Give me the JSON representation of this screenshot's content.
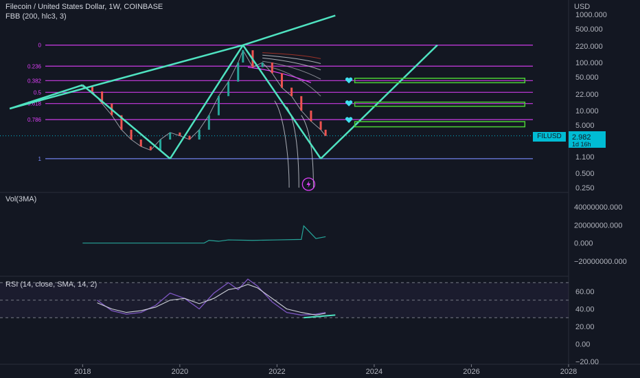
{
  "header": {
    "symbol_title": "Filecoin / United States Dollar, 1W, COINBASE",
    "indicator_fbb": "FBB (200, hlc3, 3)",
    "currency": "USD"
  },
  "price_pane": {
    "price_ticks": [
      "1000.000",
      "500.000",
      "220.000",
      "100.000",
      "50.000",
      "22.000",
      "10.000",
      "5.000",
      "2.982",
      "1.100",
      "0.500",
      "0.250"
    ],
    "fib_levels": [
      {
        "label": "0",
        "color": "#e040fb"
      },
      {
        "label": "0.236",
        "color": "#e040fb"
      },
      {
        "label": "0.382",
        "color": "#e040fb"
      },
      {
        "label": "0.5",
        "color": "#e040fb"
      },
      {
        "label": "0.618",
        "color": "#e040fb"
      },
      {
        "label": "0.786",
        "color": "#e040fb"
      },
      {
        "label": "1",
        "color": "#7b8cff"
      }
    ],
    "last_price_tag": {
      "symbol": "FILUSD",
      "price": "2.982",
      "countdown": "1d 16h",
      "color": "#00bcd4"
    },
    "trend_color": "#4fe3c1",
    "target_box_color": "#4cd137",
    "icons": [
      "heart-icon",
      "heart-icon",
      "heart-icon",
      "lightning-icon"
    ]
  },
  "volume_pane": {
    "title": "Vol(3MA)",
    "ticks": [
      "40000000.000",
      "20000000.000",
      "0.000",
      "−20000000.000"
    ],
    "line_color": "#26a69a"
  },
  "rsi_pane": {
    "title": "RSI (14, close, SMA, 14, 2)",
    "ticks": [
      "60.00",
      "40.00",
      "20.00",
      "0.00",
      "−20.00"
    ],
    "rsi_color": "#7e57c2",
    "sma_color": "#d1d4dc",
    "band_color": "#7e57c2"
  },
  "time_axis": {
    "labels": [
      "2018",
      "2020",
      "2022",
      "2024",
      "2026",
      "2028"
    ]
  },
  "chart_data": {
    "type": "line",
    "title": "Filecoin / United States Dollar, 1W, COINBASE",
    "y_scale": "log",
    "xlim": [
      2016.3,
      2028
    ],
    "ylim": [
      0.25,
      1000
    ],
    "grid": false,
    "price_path": [
      {
        "x": 2017.95,
        "y": 33
      },
      {
        "x": 2018.2,
        "y": 25
      },
      {
        "x": 2018.4,
        "y": 14
      },
      {
        "x": 2018.6,
        "y": 8
      },
      {
        "x": 2018.8,
        "y": 4
      },
      {
        "x": 2019.0,
        "y": 2.5
      },
      {
        "x": 2019.2,
        "y": 1.8
      },
      {
        "x": 2019.4,
        "y": 1.5
      },
      {
        "x": 2019.6,
        "y": 2.5
      },
      {
        "x": 2019.8,
        "y": 3.5
      },
      {
        "x": 2020.0,
        "y": 3
      },
      {
        "x": 2020.2,
        "y": 2.5
      },
      {
        "x": 2020.4,
        "y": 4
      },
      {
        "x": 2020.6,
        "y": 8
      },
      {
        "x": 2020.8,
        "y": 20
      },
      {
        "x": 2021.0,
        "y": 40
      },
      {
        "x": 2021.2,
        "y": 100
      },
      {
        "x": 2021.3,
        "y": 180
      },
      {
        "x": 2021.5,
        "y": 80
      },
      {
        "x": 2021.7,
        "y": 100
      },
      {
        "x": 2021.9,
        "y": 60
      },
      {
        "x": 2022.1,
        "y": 30
      },
      {
        "x": 2022.3,
        "y": 20
      },
      {
        "x": 2022.5,
        "y": 10
      },
      {
        "x": 2022.7,
        "y": 6
      },
      {
        "x": 2022.9,
        "y": 4
      },
      {
        "x": 2023.0,
        "y": 2.98
      }
    ],
    "trend_lines": [
      {
        "points": [
          [
            2016.5,
            11
          ],
          [
            2018.0,
            34
          ]
        ]
      },
      {
        "points": [
          [
            2018.0,
            34
          ],
          [
            2019.8,
            1.0
          ]
        ]
      },
      {
        "points": [
          [
            2019.8,
            1.0
          ],
          [
            2021.3,
            230
          ]
        ]
      },
      {
        "points": [
          [
            2021.3,
            230
          ],
          [
            2022.9,
            1.0
          ]
        ]
      },
      {
        "points": [
          [
            2022.9,
            1.0
          ],
          [
            2025.3,
            230
          ]
        ]
      },
      {
        "points": [
          [
            2016.5,
            11
          ],
          [
            2021.3,
            230
          ],
          [
            2023.2,
            950
          ]
        ]
      }
    ],
    "target_zones": [
      {
        "x": [
          2023.6,
          2027.1
        ],
        "y": [
          38,
          47
        ]
      },
      {
        "x": [
          2023.6,
          2027.1
        ],
        "y": [
          12.3,
          15
        ]
      },
      {
        "x": [
          2023.6,
          2027.1
        ],
        "y": [
          4.6,
          5.9
        ]
      }
    ],
    "volume_series": {
      "name": "Vol(3MA)",
      "x": [
        2018.0,
        2020.5,
        2020.6,
        2020.8,
        2021.0,
        2021.5,
        2022.0,
        2022.5,
        2022.55,
        2022.8,
        2023.0
      ],
      "y": [
        0,
        0,
        3000000,
        2000000,
        3500000,
        3000000,
        3500000,
        4000000,
        19000000,
        5000000,
        7000000
      ]
    },
    "rsi_series": {
      "name": "RSI",
      "x": [
        2018.3,
        2018.6,
        2018.9,
        2019.2,
        2019.5,
        2019.8,
        2020.1,
        2020.4,
        2020.7,
        2021.0,
        2021.2,
        2021.4,
        2021.6,
        2021.9,
        2022.2,
        2022.5,
        2022.8,
        2023.0
      ],
      "rsi": [
        50,
        38,
        34,
        36,
        44,
        58,
        52,
        40,
        58,
        70,
        62,
        74,
        66,
        48,
        36,
        33,
        34,
        36
      ],
      "sma": [
        47,
        40,
        36,
        38,
        42,
        50,
        52,
        46,
        52,
        62,
        64,
        68,
        64,
        52,
        40,
        36,
        33,
        35
      ]
    },
    "rsi_band": [
      30,
      70
    ]
  }
}
